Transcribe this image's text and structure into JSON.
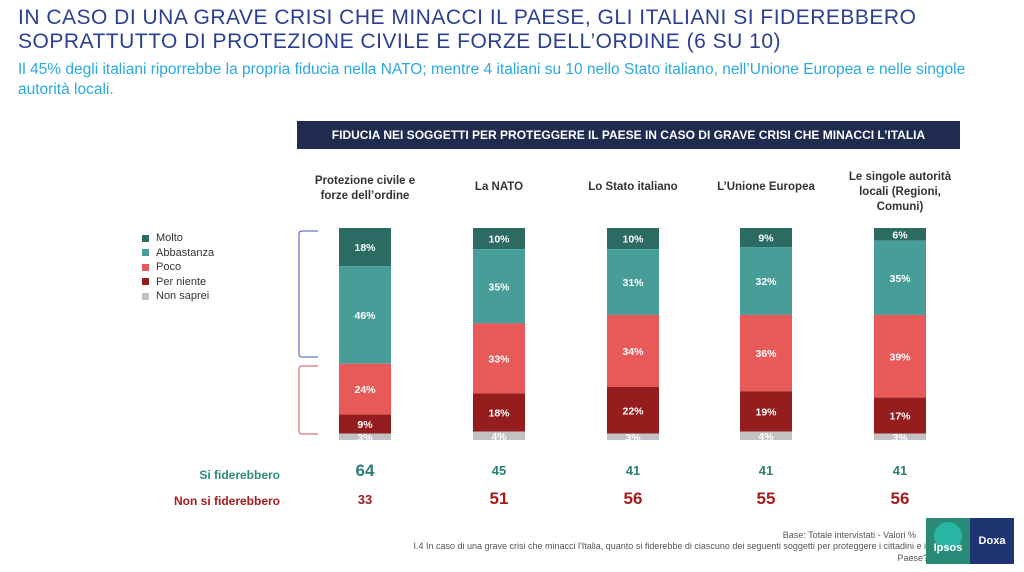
{
  "page": {
    "title": "IN CASO DI UNA GRAVE CRISI CHE MINACCI IL PAESE, GLI ITALIANI SI FIDEREBBERO SOPRATTUTTO DI PROTEZIONE CIVILE E FORZE DELL’ORDINE (6 SU 10)",
    "subtitle": "Il 45% degli italiani riporrebbe la propria fiducia nella NATO; mentre 4 italiani su 10 nello Stato italiano, nell’Unione Europea e nelle singole autorità locali.",
    "chart_title": "FIDUCIA NEI SOGGETTI PER PROTEGGERE IL PAESE IN CASO DI GRAVE CRISI CHE MINACCI L’ITALIA",
    "row_positive_label": "Si fiderebbero",
    "row_negative_label": "Non si fiderebbero",
    "base_note": "Base: Totale intervistati - Valori %",
    "question_note": "I.4 In caso di una grave crisi che minacci l'Italia, quanto si fiderebbe di ciascuno dei seguenti soggetti per proteggere i cittadini e il Paese?",
    "logo_left": "Ipsos",
    "logo_right": "Doxa"
  },
  "chart_data": {
    "type": "bar",
    "stacked": true,
    "categories": [
      "Protezione civile e forze dell’ordine",
      "La NATO",
      "Lo Stato italiano",
      "L’Unione Europea",
      "Le singole autorità locali (Regioni, Comuni)"
    ],
    "series": [
      {
        "name": "Molto",
        "color": "#2b6b64",
        "values": [
          18,
          10,
          10,
          9,
          6
        ]
      },
      {
        "name": "Abbastanza",
        "color": "#479e98",
        "values": [
          46,
          35,
          31,
          32,
          35
        ]
      },
      {
        "name": "Poco",
        "color": "#e85a5a",
        "values": [
          24,
          33,
          34,
          36,
          39
        ]
      },
      {
        "name": "Per niente",
        "color": "#951d1d",
        "values": [
          9,
          18,
          22,
          19,
          17
        ]
      },
      {
        "name": "Non saprei",
        "color": "#c2c2c2",
        "values": [
          3,
          4,
          3,
          4,
          3
        ]
      }
    ],
    "totals": {
      "si_fiderebbero": [
        64,
        45,
        41,
        41,
        41
      ],
      "non_si_fiderebbero": [
        33,
        51,
        56,
        55,
        56
      ]
    },
    "legend_position": "left",
    "unit": "%"
  }
}
